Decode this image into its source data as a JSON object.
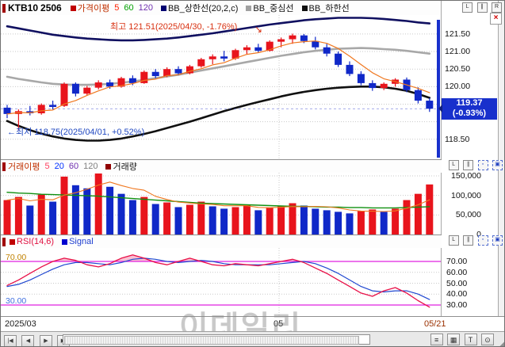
{
  "window": {
    "symbol": "KTB10",
    "contract": "2506"
  },
  "main_legend": {
    "price_ma": "가격이평",
    "p1": "5",
    "p2": "60",
    "p3": "120",
    "bb_upper": "BB_상한선(20,2,c)",
    "bb_mid": "BB_중심선",
    "bb_lower": "BB_하한선"
  },
  "vol_legend": {
    "label": "거래이평",
    "p1": "5",
    "p2": "20",
    "p3": "60",
    "p4": "120",
    "volume": "거래량"
  },
  "rsi_legend": {
    "rsi": "RSI(14,6)",
    "signal": "Signal"
  },
  "annotations": {
    "high": "최고 121.51(2025/04/30, -1.76%)",
    "low": "최저 118.75(2025/04/01, +0.52%)",
    "arrow_se": "↘",
    "arrow_left": "←"
  },
  "quote": {
    "last": "119.37",
    "change": "(-0.93%)"
  },
  "axis": {
    "price_labels": [
      "121.50",
      "121.00",
      "120.50",
      "120.00",
      "118.50"
    ],
    "volume_labels": [
      "150,000",
      "100,000",
      "50,000",
      "0"
    ],
    "rsi_labels": [
      "70.00",
      "60.00",
      "50.00",
      "40.00",
      "30.00"
    ],
    "rsi_overbought": "70.00",
    "rsi_oversold": "30.00"
  },
  "dates": {
    "start": "2025/03",
    "mid": "05",
    "end": "05/21"
  },
  "watermark": "이데일리",
  "toolbar": {
    "nav": [
      "|◀",
      "◀",
      "▶",
      "▶|"
    ],
    "icons": [
      "≡",
      "▦",
      "T",
      "⊙"
    ],
    "grip": "◢"
  },
  "window_icons": {
    "i1": "L",
    "i2": "∥",
    "i3": "R",
    "close": "×",
    "box1": "▫",
    "box2": "▣"
  },
  "chart_data": [
    {
      "type": "candlestick",
      "title": "KTB10 2506",
      "ylim": [
        117.93,
        122.04
      ],
      "grid_levels": [
        118.5,
        119.0,
        119.5,
        120.0,
        120.5,
        121.0,
        121.5
      ],
      "high_point": {
        "price": 121.51,
        "date": "2025/04/30",
        "pct": "-1.76%"
      },
      "low_point": {
        "price": 118.75,
        "date": "2025/04/01",
        "pct": "+0.52%"
      },
      "last_close": 119.37,
      "last_change_pct": "-0.93%",
      "ohlc": [
        [
          119.4,
          119.48,
          119.1,
          119.22
        ],
        [
          119.22,
          119.35,
          118.75,
          119.3
        ],
        [
          119.3,
          119.45,
          119.18,
          119.24
        ],
        [
          119.24,
          119.52,
          119.2,
          119.48
        ],
        [
          119.48,
          119.6,
          119.35,
          119.42
        ],
        [
          119.45,
          120.12,
          119.42,
          120.08
        ],
        [
          120.08,
          120.12,
          119.72,
          119.8
        ],
        [
          119.8,
          120.02,
          119.75,
          119.97
        ],
        [
          119.97,
          120.18,
          119.92,
          120.12
        ],
        [
          120.12,
          120.2,
          119.94,
          120.0
        ],
        [
          120.0,
          120.28,
          119.97,
          120.24
        ],
        [
          120.24,
          120.32,
          120.04,
          120.1
        ],
        [
          120.1,
          120.46,
          120.08,
          120.42
        ],
        [
          120.42,
          120.5,
          120.24,
          120.3
        ],
        [
          120.3,
          120.55,
          120.27,
          120.5
        ],
        [
          120.5,
          120.58,
          120.32,
          120.38
        ],
        [
          120.38,
          120.62,
          120.35,
          120.58
        ],
        [
          120.58,
          120.82,
          120.54,
          120.78
        ],
        [
          120.78,
          120.92,
          120.64,
          120.86
        ],
        [
          120.86,
          121.02,
          120.72,
          120.8
        ],
        [
          120.8,
          121.08,
          120.76,
          121.04
        ],
        [
          121.04,
          121.18,
          120.92,
          121.12
        ],
        [
          121.12,
          121.22,
          120.96,
          121.02
        ],
        [
          121.02,
          121.32,
          121.0,
          121.28
        ],
        [
          121.28,
          121.4,
          121.12,
          121.35
        ],
        [
          121.35,
          121.51,
          121.22,
          121.46
        ],
        [
          121.46,
          121.5,
          121.24,
          121.3
        ],
        [
          121.3,
          121.42,
          121.06,
          121.12
        ],
        [
          121.12,
          121.22,
          120.86,
          120.94
        ],
        [
          120.94,
          121.0,
          120.56,
          120.62
        ],
        [
          120.62,
          120.72,
          120.3,
          120.36
        ],
        [
          120.36,
          120.44,
          120.04,
          120.1
        ],
        [
          120.1,
          120.18,
          119.88,
          119.96
        ],
        [
          119.96,
          120.12,
          119.9,
          120.08
        ],
        [
          120.08,
          120.24,
          120.0,
          120.2
        ],
        [
          120.2,
          120.26,
          119.84,
          119.9
        ],
        [
          119.9,
          119.98,
          119.52,
          119.6
        ],
        [
          119.6,
          119.68,
          119.28,
          119.37
        ]
      ],
      "bb_upper": [
        121.72,
        121.66,
        121.6,
        121.54,
        121.48,
        121.44,
        121.4,
        121.37,
        121.35,
        121.33,
        121.32,
        121.32,
        121.33,
        121.35,
        121.37,
        121.4,
        121.44,
        121.48,
        121.52,
        121.57,
        121.62,
        121.67,
        121.72,
        121.77,
        121.81,
        121.85,
        121.89,
        121.92,
        121.94,
        121.96,
        121.96,
        121.96,
        121.95,
        121.93,
        121.9,
        121.87,
        121.83,
        121.8
      ],
      "bb_middle": [
        120.28,
        120.22,
        120.17,
        120.12,
        120.08,
        120.06,
        120.05,
        120.05,
        120.06,
        120.08,
        120.11,
        120.15,
        120.19,
        120.24,
        120.29,
        120.34,
        120.4,
        120.46,
        120.52,
        120.58,
        120.64,
        120.7,
        120.76,
        120.82,
        120.88,
        120.93,
        120.98,
        121.02,
        121.05,
        121.08,
        121.09,
        121.1,
        121.09,
        121.07,
        121.05,
        121.02,
        120.98,
        120.94
      ],
      "bb_lower": [
        119.02,
        118.88,
        118.76,
        118.66,
        118.58,
        118.52,
        118.48,
        118.46,
        118.46,
        118.48,
        118.52,
        118.58,
        118.65,
        118.73,
        118.82,
        118.91,
        119.0,
        119.1,
        119.2,
        119.3,
        119.39,
        119.48,
        119.56,
        119.64,
        119.72,
        119.79,
        119.85,
        119.9,
        119.94,
        119.97,
        119.99,
        120.0,
        120.0,
        119.98,
        119.94,
        119.88,
        119.79,
        119.68
      ],
      "colors": {
        "up": "#e8141c",
        "down": "#1028c8",
        "ma5": "#f07820",
        "bb_upper": "#101060",
        "bb_middle": "#a8a8a8",
        "bb_lower": "#101010"
      }
    },
    {
      "type": "bar",
      "title": "거래량",
      "ylim": [
        0,
        158000
      ],
      "gridlines": [
        50000,
        100000,
        150000
      ],
      "values": [
        88000,
        96000,
        74000,
        102000,
        84000,
        148000,
        126000,
        118000,
        156000,
        122000,
        104000,
        88000,
        96000,
        78000,
        82000,
        70000,
        76000,
        84000,
        72000,
        66000,
        70000,
        76000,
        62000,
        68000,
        72000,
        80000,
        74000,
        66000,
        62000,
        58000,
        54000,
        60000,
        64000,
        58000,
        66000,
        88000,
        104000,
        128000
      ],
      "ma_long": [
        108000,
        106000,
        105000,
        103000,
        102000,
        101000,
        100000,
        99000,
        98000,
        96000,
        94000,
        92000,
        90000,
        88000,
        86000,
        84000,
        82000,
        80000,
        79000,
        78000,
        77000,
        76000,
        75000,
        74000,
        73000,
        72000,
        72000,
        71000,
        70000,
        70000,
        69000,
        69000,
        68000,
        68000,
        68000,
        69000,
        70000,
        71000
      ],
      "colors": {
        "up": "#e8141c",
        "down": "#1028c8",
        "ma_long": "#109010",
        "ma_short": "#f07820"
      }
    },
    {
      "type": "line",
      "title": "RSI(14,6)",
      "ylim": [
        19.8,
        82.4
      ],
      "gridlines": [
        40,
        50,
        60
      ],
      "thresholds": [
        70,
        30
      ],
      "series": [
        {
          "name": "RSI",
          "values": [
            48,
            53,
            59,
            65,
            70,
            73,
            71,
            67,
            65,
            68,
            73,
            76,
            73,
            69,
            67,
            70,
            73,
            70,
            67,
            66,
            68,
            67,
            66,
            68,
            70,
            72,
            69,
            64,
            59,
            53,
            47,
            41,
            38,
            43,
            46,
            41,
            34,
            28
          ]
        },
        {
          "name": "Signal",
          "values": [
            47,
            49,
            53,
            58,
            63,
            67,
            69,
            69,
            68,
            67,
            69,
            72,
            73,
            72,
            70,
            69,
            70,
            71,
            70,
            68,
            67,
            67,
            67,
            67,
            68,
            69,
            70,
            68,
            64,
            59,
            53,
            47,
            43,
            42,
            43,
            43,
            40,
            35
          ]
        }
      ],
      "colors": {
        "rsi": "#e81048",
        "signal": "#2048d0",
        "threshold": "#e020e0",
        "fill": "#f8b8cc"
      }
    }
  ]
}
